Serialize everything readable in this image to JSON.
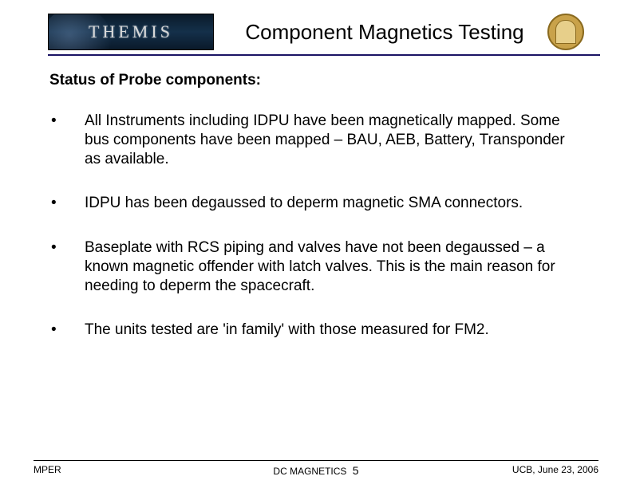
{
  "header": {
    "logo_text": "THEMIS",
    "slide_title": "Component Magnetics Testing"
  },
  "content": {
    "section_title": "Status of Probe components:",
    "bullets": [
      "All Instruments including IDPU have been magnetically mapped. Some bus components have been mapped – BAU, AEB, Battery, Transponder as available.",
      "IDPU has been degaussed to deperm magnetic SMA connectors.",
      "Baseplate with RCS piping and valves have not been degaussed – a known magnetic offender with latch valves. This is the main reason for needing to deperm the spacecraft.",
      "The units tested are 'in family' with those measured for FM2."
    ]
  },
  "footer": {
    "left": "MPER",
    "center_label": "DC MAGNETICS",
    "page_number": "5",
    "right": "UCB, June 23, 2006"
  },
  "colors": {
    "rule_color": "#1b1464",
    "text_color": "#000000",
    "background": "#ffffff"
  }
}
